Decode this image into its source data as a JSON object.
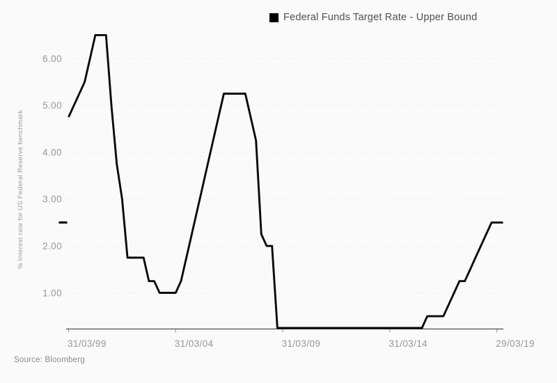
{
  "legend": {
    "label": "Federal Funds Target Rate - Upper Bound",
    "marker_color": "#000000"
  },
  "source": "Source: Bloomberg",
  "current_value_marker": {
    "value": 2.5
  },
  "colors": {
    "background": "#fafafa",
    "line": "#0a0a0a",
    "grid": "#e7e7e7",
    "axis": "#404040",
    "tick_mark": "#8f8f8f",
    "tick_text": "#979797",
    "axis_title_text": "#9a9a9a",
    "legend_text": "#4f4f4f",
    "source_text": "#8a8a8a"
  },
  "y_axis": {
    "title": "% Interest rate for US Federal Reserve benchmark",
    "tick_labels": [
      "6.00",
      "5.00",
      "4.00",
      "3.00",
      "2.00",
      "1.00"
    ],
    "tick_values": [
      6,
      5,
      4,
      3,
      2,
      1
    ]
  },
  "x_axis": {
    "tick_labels": [
      "31/03/99",
      "31/03/04",
      "31/03/09",
      "31/03/14",
      "29/03/19"
    ]
  },
  "chart_data": {
    "type": "line",
    "title": "Federal Funds Target Rate - Upper Bound",
    "xlabel": "",
    "ylabel": "% Interest rate for US Federal Reserve benchmark",
    "ylim": [
      0,
      6.9
    ],
    "grid": "horizontal-dashed",
    "legend_position": "top-center",
    "y_tick_values": [
      1,
      2,
      3,
      4,
      5,
      6
    ],
    "y_tick_labels": [
      "1.00",
      "2.00",
      "3.00",
      "4.00",
      "5.00",
      "6.00"
    ],
    "x_tick_labels": [
      "31/03/99",
      "31/03/04",
      "31/03/09",
      "31/03/14",
      "29/03/19"
    ],
    "x_tick_indices": [
      0,
      20,
      40,
      60,
      80
    ],
    "last_value": 2.5,
    "dates": [
      "31/03/99",
      "30/06/99",
      "30/09/99",
      "31/12/99",
      "31/03/00",
      "30/06/00",
      "30/09/00",
      "31/12/00",
      "31/03/01",
      "30/06/01",
      "30/09/01",
      "31/12/01",
      "31/03/02",
      "30/06/02",
      "30/09/02",
      "31/12/02",
      "31/03/03",
      "30/06/03",
      "30/09/03",
      "31/12/03",
      "31/03/04",
      "30/06/04",
      "30/09/04",
      "31/12/04",
      "31/03/05",
      "30/06/05",
      "30/09/05",
      "31/12/05",
      "31/03/06",
      "30/06/06",
      "30/09/06",
      "31/12/06",
      "31/03/07",
      "30/06/07",
      "30/09/07",
      "31/12/07",
      "31/03/08",
      "30/06/08",
      "30/09/08",
      "31/12/08",
      "31/03/09",
      "30/06/09",
      "30/09/09",
      "31/12/09",
      "31/03/10",
      "30/06/10",
      "30/09/10",
      "31/12/10",
      "31/03/11",
      "30/06/11",
      "30/09/11",
      "31/12/11",
      "31/03/12",
      "30/06/12",
      "30/09/12",
      "31/12/12",
      "31/03/13",
      "30/06/13",
      "30/09/13",
      "31/12/13",
      "31/03/14",
      "30/06/14",
      "30/09/14",
      "31/12/14",
      "31/03/15",
      "30/06/15",
      "30/09/15",
      "31/12/15",
      "31/03/16",
      "30/06/16",
      "30/09/16",
      "31/12/16",
      "31/03/17",
      "30/06/17",
      "30/09/17",
      "31/12/17",
      "31/03/18",
      "30/06/18",
      "30/09/18",
      "31/12/18",
      "29/03/19"
    ],
    "values": [
      4.75,
      5.0,
      5.25,
      5.5,
      6.0,
      6.5,
      6.5,
      6.5,
      5.0,
      3.75,
      3.0,
      1.75,
      1.75,
      1.75,
      1.75,
      1.25,
      1.25,
      1.0,
      1.0,
      1.0,
      1.0,
      1.25,
      1.75,
      2.25,
      2.75,
      3.25,
      3.75,
      4.25,
      4.75,
      5.25,
      5.25,
      5.25,
      5.25,
      5.25,
      4.75,
      4.25,
      2.25,
      2.0,
      2.0,
      0.25,
      0.25,
      0.25,
      0.25,
      0.25,
      0.25,
      0.25,
      0.25,
      0.25,
      0.25,
      0.25,
      0.25,
      0.25,
      0.25,
      0.25,
      0.25,
      0.25,
      0.25,
      0.25,
      0.25,
      0.25,
      0.25,
      0.25,
      0.25,
      0.25,
      0.25,
      0.25,
      0.25,
      0.5,
      0.5,
      0.5,
      0.5,
      0.75,
      1.0,
      1.25,
      1.25,
      1.5,
      1.75,
      2.0,
      2.25,
      2.5,
      2.5
    ]
  }
}
